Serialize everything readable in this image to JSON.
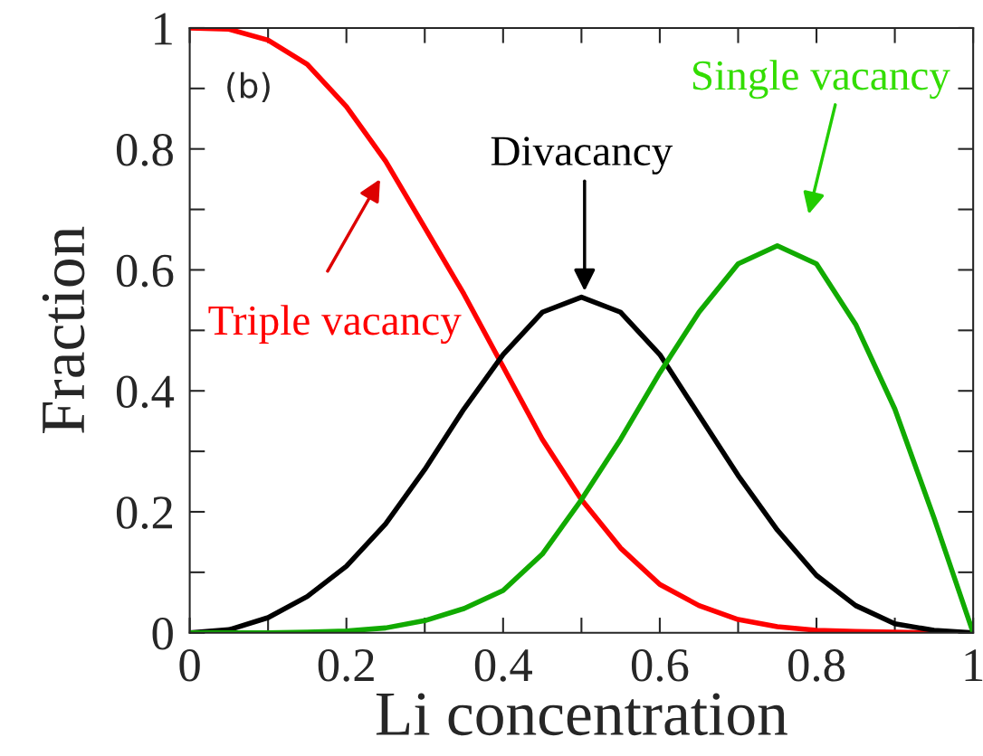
{
  "chart_data": {
    "type": "line",
    "xlabel": "Li concentration",
    "ylabel": "Fraction",
    "x": [
      0,
      0.05,
      0.1,
      0.15,
      0.2,
      0.25,
      0.3,
      0.35,
      0.4,
      0.45,
      0.5,
      0.55,
      0.6,
      0.65,
      0.7,
      0.75,
      0.8,
      0.85,
      0.9,
      0.95,
      1
    ],
    "series": [
      {
        "color": "#ff0000",
        "values": [
          1,
          0.998,
          0.98,
          0.94,
          0.87,
          0.78,
          0.67,
          0.56,
          0.44,
          0.32,
          0.22,
          0.14,
          0.08,
          0.045,
          0.022,
          0.01,
          0.004,
          0.002,
          0.001,
          0,
          0
        ]
      },
      {
        "color": "#000000",
        "values": [
          0,
          0.005,
          0.025,
          0.06,
          0.11,
          0.18,
          0.27,
          0.37,
          0.46,
          0.53,
          0.555,
          0.53,
          0.46,
          0.36,
          0.26,
          0.17,
          0.095,
          0.045,
          0.015,
          0.004,
          0
        ]
      },
      {
        "color": "#11aa00",
        "values": [
          0,
          0,
          0,
          0.001,
          0.003,
          0.008,
          0.02,
          0.04,
          0.07,
          0.13,
          0.22,
          0.32,
          0.43,
          0.53,
          0.61,
          0.64,
          0.61,
          0.51,
          0.37,
          0.19,
          0
        ]
      }
    ],
    "annotations": [
      "Triple vacancy",
      "Divacancy",
      "Single vacancy",
      "(b)"
    ],
    "xlim": [
      0,
      1
    ],
    "ylim": [
      0,
      1
    ],
    "xticks": [
      0,
      0.2,
      0.4,
      0.6,
      0.8,
      1
    ],
    "yticks": [
      0,
      0.2,
      0.4,
      0.6,
      0.8,
      1
    ],
    "grid": false,
    "marker": "none",
    "line_style": "solid"
  }
}
